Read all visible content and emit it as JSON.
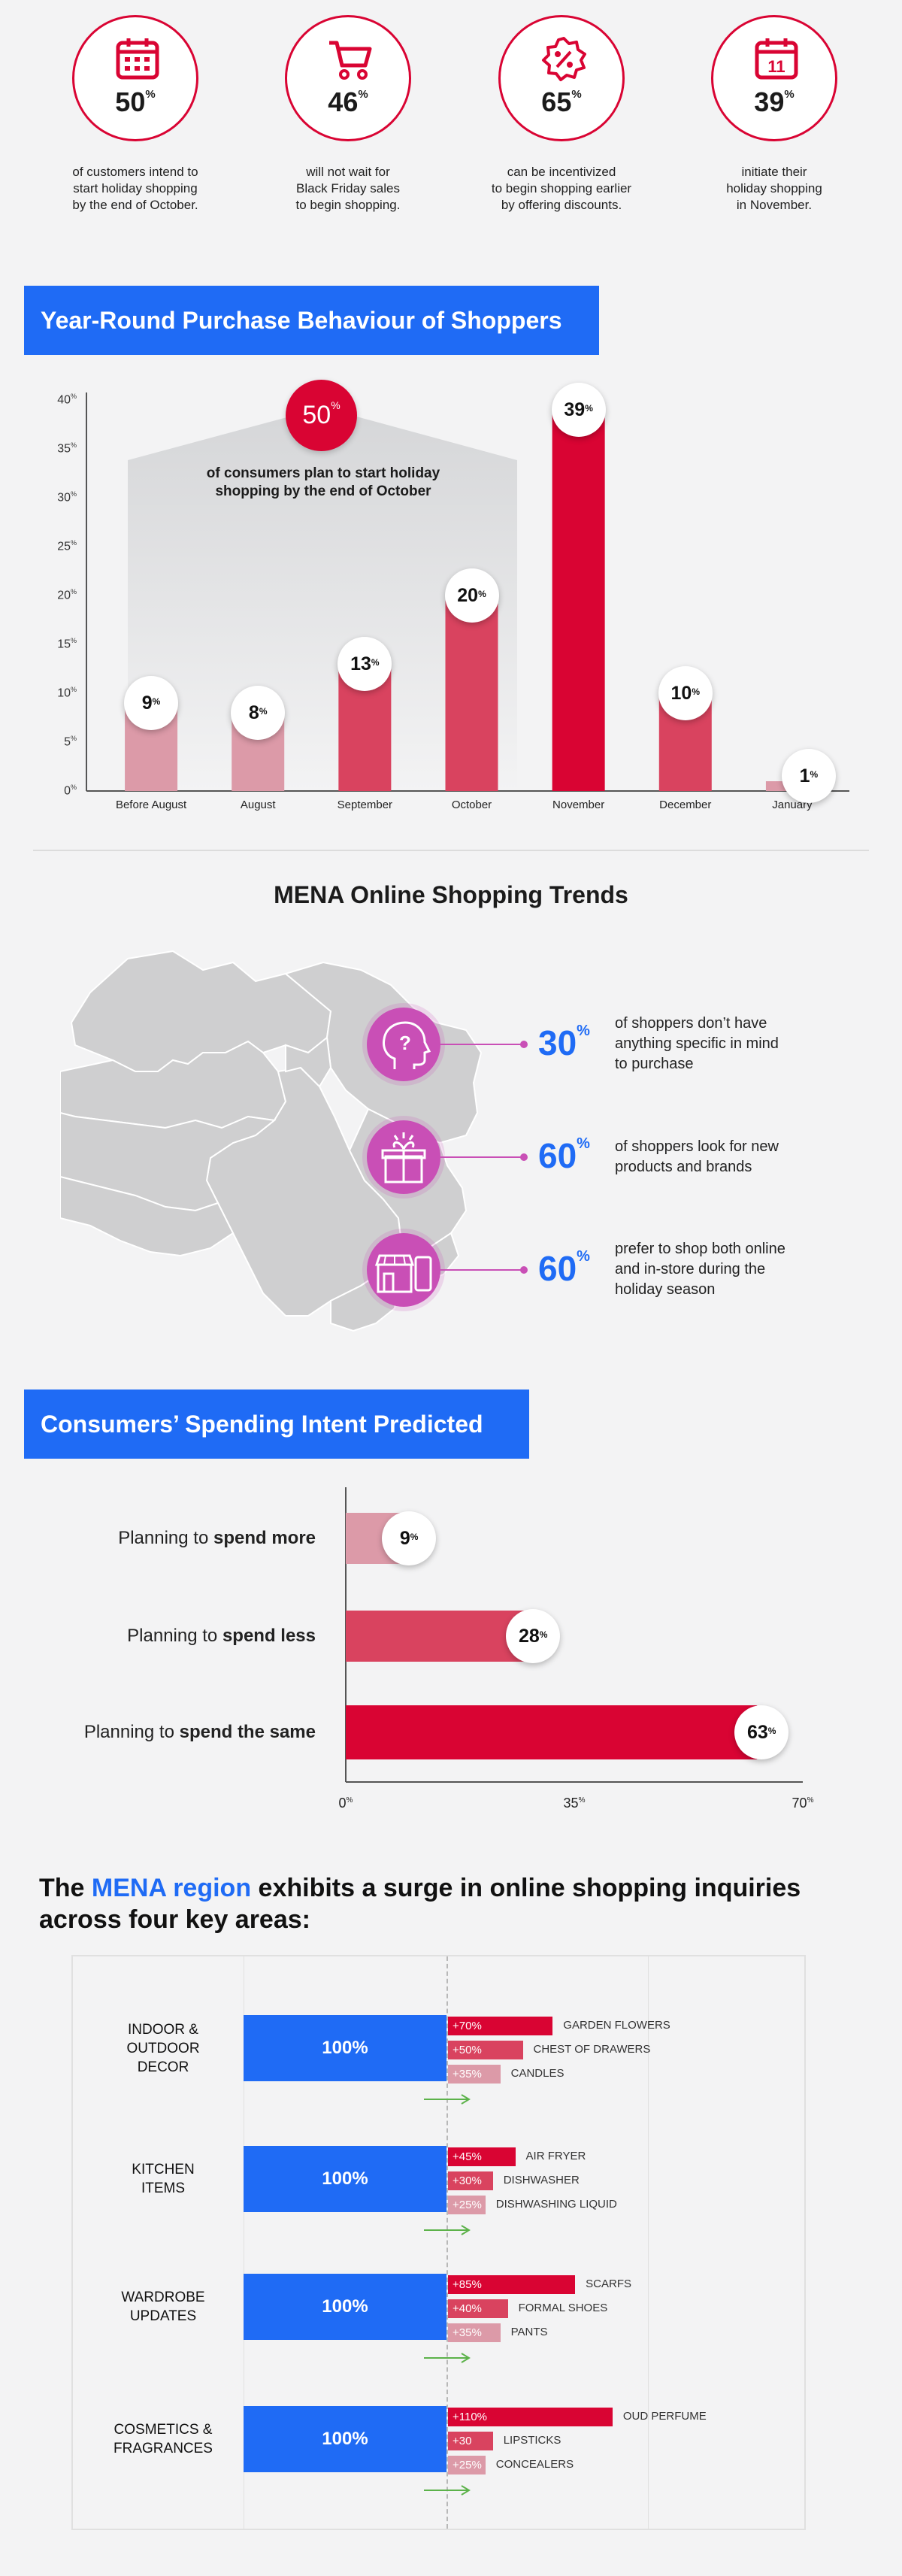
{
  "stats": [
    {
      "value": "50",
      "unit": "%",
      "icon": "calendar-icon",
      "caption": [
        "of customers intend to",
        "start holiday shopping",
        "by the end of October."
      ]
    },
    {
      "value": "46",
      "unit": "%",
      "icon": "cart-icon",
      "caption": [
        "will not wait for",
        "Black Friday sales",
        "to begin shopping."
      ]
    },
    {
      "value": "65",
      "unit": "%",
      "icon": "discount-badge-icon",
      "caption": [
        "can be incentivized",
        "to begin shopping earlier",
        "by offering discounts."
      ]
    },
    {
      "value": "39",
      "unit": "%",
      "icon": "calendar-11-icon",
      "icon_text": "11",
      "caption": [
        "initiate their",
        "holiday shopping",
        "in November."
      ]
    }
  ],
  "section1": {
    "title": "Year-Round Purchase Behaviour of Shoppers"
  },
  "callout": {
    "value": "50",
    "unit": "%",
    "text": [
      "of consumers plan to start holiday",
      "shopping by the end of October"
    ]
  },
  "chart_data": [
    {
      "type": "bar",
      "title": "Year-Round Purchase Behaviour of Shoppers",
      "categories": [
        "Before August",
        "August",
        "September",
        "October",
        "November",
        "December",
        "January"
      ],
      "values": [
        9,
        8,
        13,
        20,
        39,
        10,
        1
      ],
      "ylim": [
        0,
        40
      ],
      "yticks": [
        0,
        5,
        10,
        15,
        20,
        25,
        30,
        35,
        40
      ],
      "ytick_unit": "%",
      "colors": [
        "#dc9aa8",
        "#dc9aa8",
        "#d9435f",
        "#d9435f",
        "#d90433",
        "#d9435f",
        "#dc9aa8"
      ],
      "grid": false
    },
    {
      "type": "bar",
      "orientation": "horizontal",
      "title": "Consumers’ Spending Intent Predicted",
      "categories": [
        "Planning to spend more",
        "Planning to spend less",
        "Planning to spend the same"
      ],
      "values": [
        9,
        28,
        63
      ],
      "xlim": [
        0,
        70
      ],
      "xticks": [
        "0",
        "35",
        "70"
      ],
      "xtick_unit": "%",
      "colors": [
        "#dc9aa8",
        "#d9435f",
        "#d90433"
      ]
    },
    {
      "type": "bar",
      "orientation": "horizontal",
      "title": "The MENA region exhibits a surge in online shopping inquiries across four key areas:",
      "baseline": "100%",
      "groups": [
        {
          "name": [
            "INDOOR &",
            "OUTDOOR",
            "DECOR"
          ],
          "items": [
            {
              "label": "GARDEN FLOWERS",
              "value": 70,
              "text": "+70%"
            },
            {
              "label": "CHEST OF DRAWERS",
              "value": 50,
              "text": "+50%"
            },
            {
              "label": "CANDLES",
              "value": 35,
              "text": "+35%"
            }
          ]
        },
        {
          "name": [
            "KITCHEN",
            "ITEMS"
          ],
          "items": [
            {
              "label": "AIR FRYER",
              "value": 45,
              "text": "+45%"
            },
            {
              "label": "DISHWASHER",
              "value": 30,
              "text": "+30%"
            },
            {
              "label": "DISHWASHING LIQUID",
              "value": 25,
              "text": "+25%"
            }
          ]
        },
        {
          "name": [
            "WARDROBE",
            "UPDATES"
          ],
          "items": [
            {
              "label": "SCARFS",
              "value": 85,
              "text": "+85%"
            },
            {
              "label": "FORMAL SHOES",
              "value": 40,
              "text": "+40%"
            },
            {
              "label": "PANTS",
              "value": 35,
              "text": "+35%"
            }
          ]
        },
        {
          "name": [
            "COSMETICS &",
            "FRAGRANCES"
          ],
          "items": [
            {
              "label": "OUD PERFUME",
              "value": 110,
              "text": "+110%"
            },
            {
              "label": "LIPSTICKS",
              "value": 30,
              "text": "+30"
            },
            {
              "label": "CONCEALERS",
              "value": 25,
              "text": "+25%"
            }
          ]
        }
      ],
      "colors": [
        "#d90433",
        "#d9435f",
        "#dc9aa8"
      ]
    }
  ],
  "section2": {
    "title": "MENA Online Shopping Trends",
    "trends": [
      {
        "value": "30",
        "unit": "%",
        "icon": "head-question-icon",
        "text": [
          "of shoppers don’t have",
          "anything specific in mind",
          "to purchase"
        ]
      },
      {
        "value": "60",
        "unit": "%",
        "icon": "gift-box-icon",
        "text": [
          "of shoppers look for new",
          "products and brands"
        ]
      },
      {
        "value": "60",
        "unit": "%",
        "icon": "store-phone-icon",
        "text": [
          "prefer to shop both online",
          "and in-store during the",
          "holiday season"
        ]
      }
    ]
  },
  "section3": {
    "title": "Consumers’ Spending Intent Predicted",
    "rows": [
      {
        "prefix": "Planning to ",
        "bold": "spend more"
      },
      {
        "prefix": "Planning to ",
        "bold": "spend less"
      },
      {
        "prefix": "Planning to ",
        "bold": "spend the same"
      }
    ]
  },
  "section4": {
    "title_pre": "The ",
    "title_hl": "MENA region",
    "title_post": " exhibits a surge in online shopping inquiries",
    "title_line2": "across four key areas:",
    "baseline_label": "100%"
  }
}
